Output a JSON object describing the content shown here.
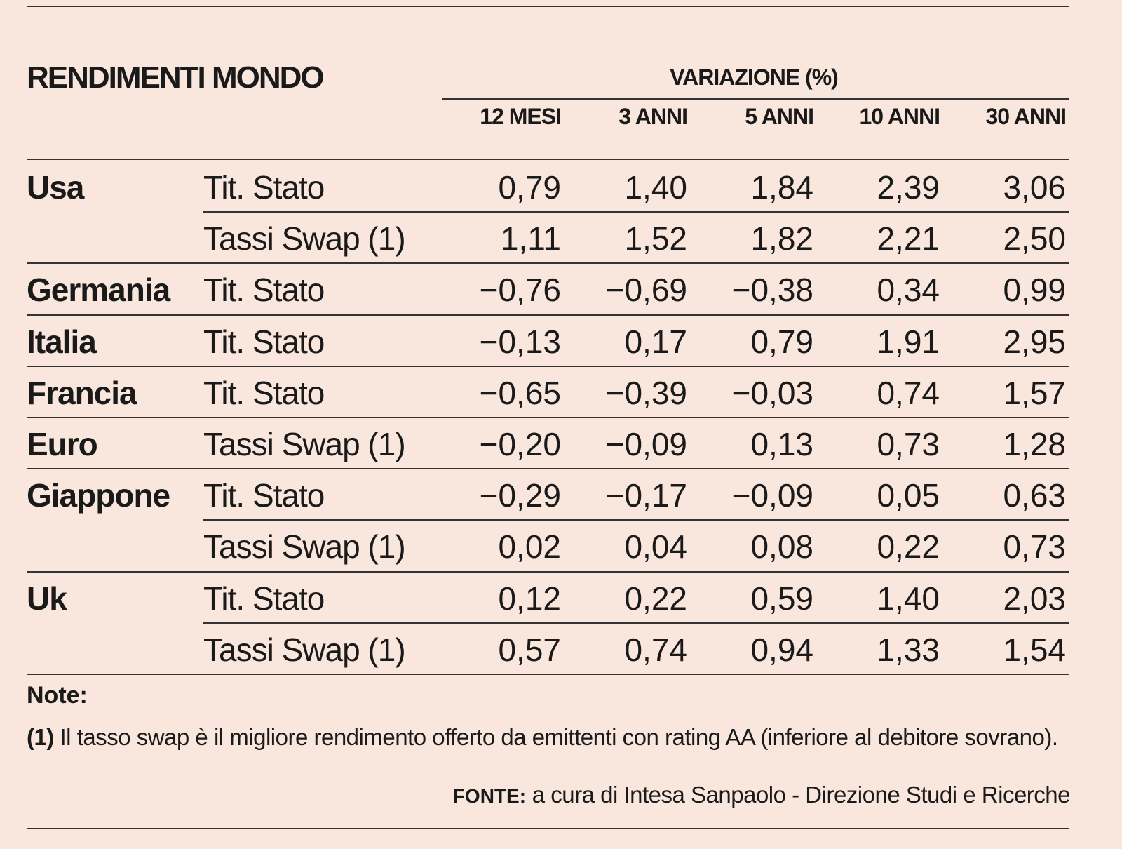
{
  "chart_data": {
    "type": "table",
    "title": "RENDIMENTI MONDO",
    "group_header": "VARIAZIONE (%)",
    "columns": [
      "12 MESI",
      "3 ANNI",
      "5 ANNI",
      "10 ANNI",
      "30 ANNI"
    ],
    "rows": [
      {
        "country": "Usa",
        "instrument": "Tit. Stato",
        "values": [
          "0,79",
          "1,40",
          "1,84",
          "2,39",
          "3,06"
        ]
      },
      {
        "country": "",
        "instrument": "Tassi Swap (1)",
        "values": [
          "1,11",
          "1,52",
          "1,82",
          "2,21",
          "2,50"
        ]
      },
      {
        "country": "Germania",
        "instrument": "Tit. Stato",
        "values": [
          "−0,76",
          "−0,69",
          "−0,38",
          "0,34",
          "0,99"
        ]
      },
      {
        "country": "Italia",
        "instrument": "Tit. Stato",
        "values": [
          "−0,13",
          "0,17",
          "0,79",
          "1,91",
          "2,95"
        ]
      },
      {
        "country": "Francia",
        "instrument": "Tit. Stato",
        "values": [
          "−0,65",
          "−0,39",
          "−0,03",
          "0,74",
          "1,57"
        ]
      },
      {
        "country": "Euro",
        "instrument": "Tassi Swap (1)",
        "values": [
          "−0,20",
          "−0,09",
          "0,13",
          "0,73",
          "1,28"
        ]
      },
      {
        "country": "Giappone",
        "instrument": "Tit. Stato",
        "values": [
          "−0,29",
          "−0,17",
          "−0,09",
          "0,05",
          "0,63"
        ]
      },
      {
        "country": "",
        "instrument": "Tassi Swap (1)",
        "values": [
          "0,02",
          "0,04",
          "0,08",
          "0,22",
          "0,73"
        ]
      },
      {
        "country": "Uk",
        "instrument": "Tit. Stato",
        "values": [
          "0,12",
          "0,22",
          "0,59",
          "1,40",
          "2,03"
        ]
      },
      {
        "country": "",
        "instrument": "Tassi Swap (1)",
        "values": [
          "0,57",
          "0,74",
          "0,94",
          "1,33",
          "1,54"
        ]
      }
    ]
  },
  "notes": {
    "heading": "Note:",
    "marker": "(1)",
    "text": " Il tasso swap è il migliore rendimento offerto da emittenti con rating AA (inferiore al debitore sovrano)."
  },
  "source": {
    "label": "FONTE:",
    "text": " a cura di Intesa Sanpaolo - Direzione Studi e Ricerche"
  }
}
